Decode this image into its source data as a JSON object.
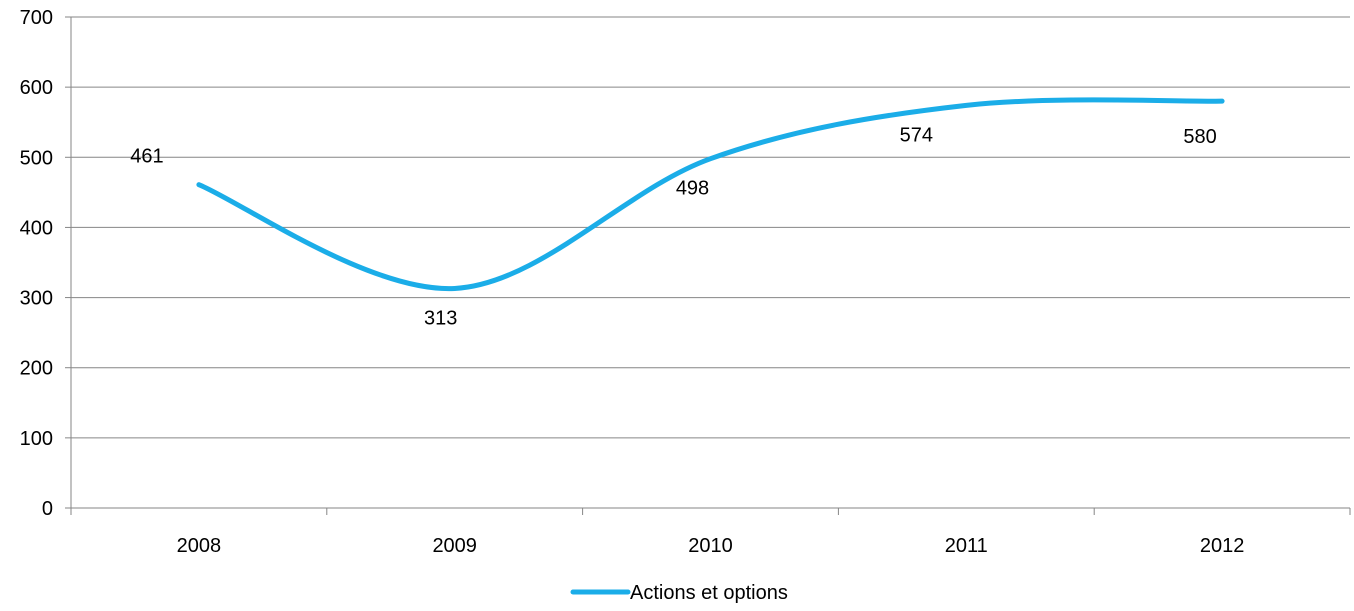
{
  "chart_data": {
    "type": "line",
    "categories": [
      "2008",
      "2009",
      "2010",
      "2011",
      "2012"
    ],
    "series": [
      {
        "name": "Actions et options",
        "values": [
          461,
          313,
          498,
          574,
          580
        ],
        "color": "#1BADE8"
      }
    ],
    "ylim": [
      0,
      700
    ],
    "yticks": [
      "0",
      "100",
      "200",
      "300",
      "400",
      "500",
      "600",
      "700"
    ],
    "data_labels": [
      "461",
      "313",
      "498",
      "574",
      "580"
    ],
    "smooth": true,
    "grid": "horizontal",
    "legend_position": "bottom",
    "colors": {
      "grid": "#868686",
      "text": "#000000"
    }
  }
}
